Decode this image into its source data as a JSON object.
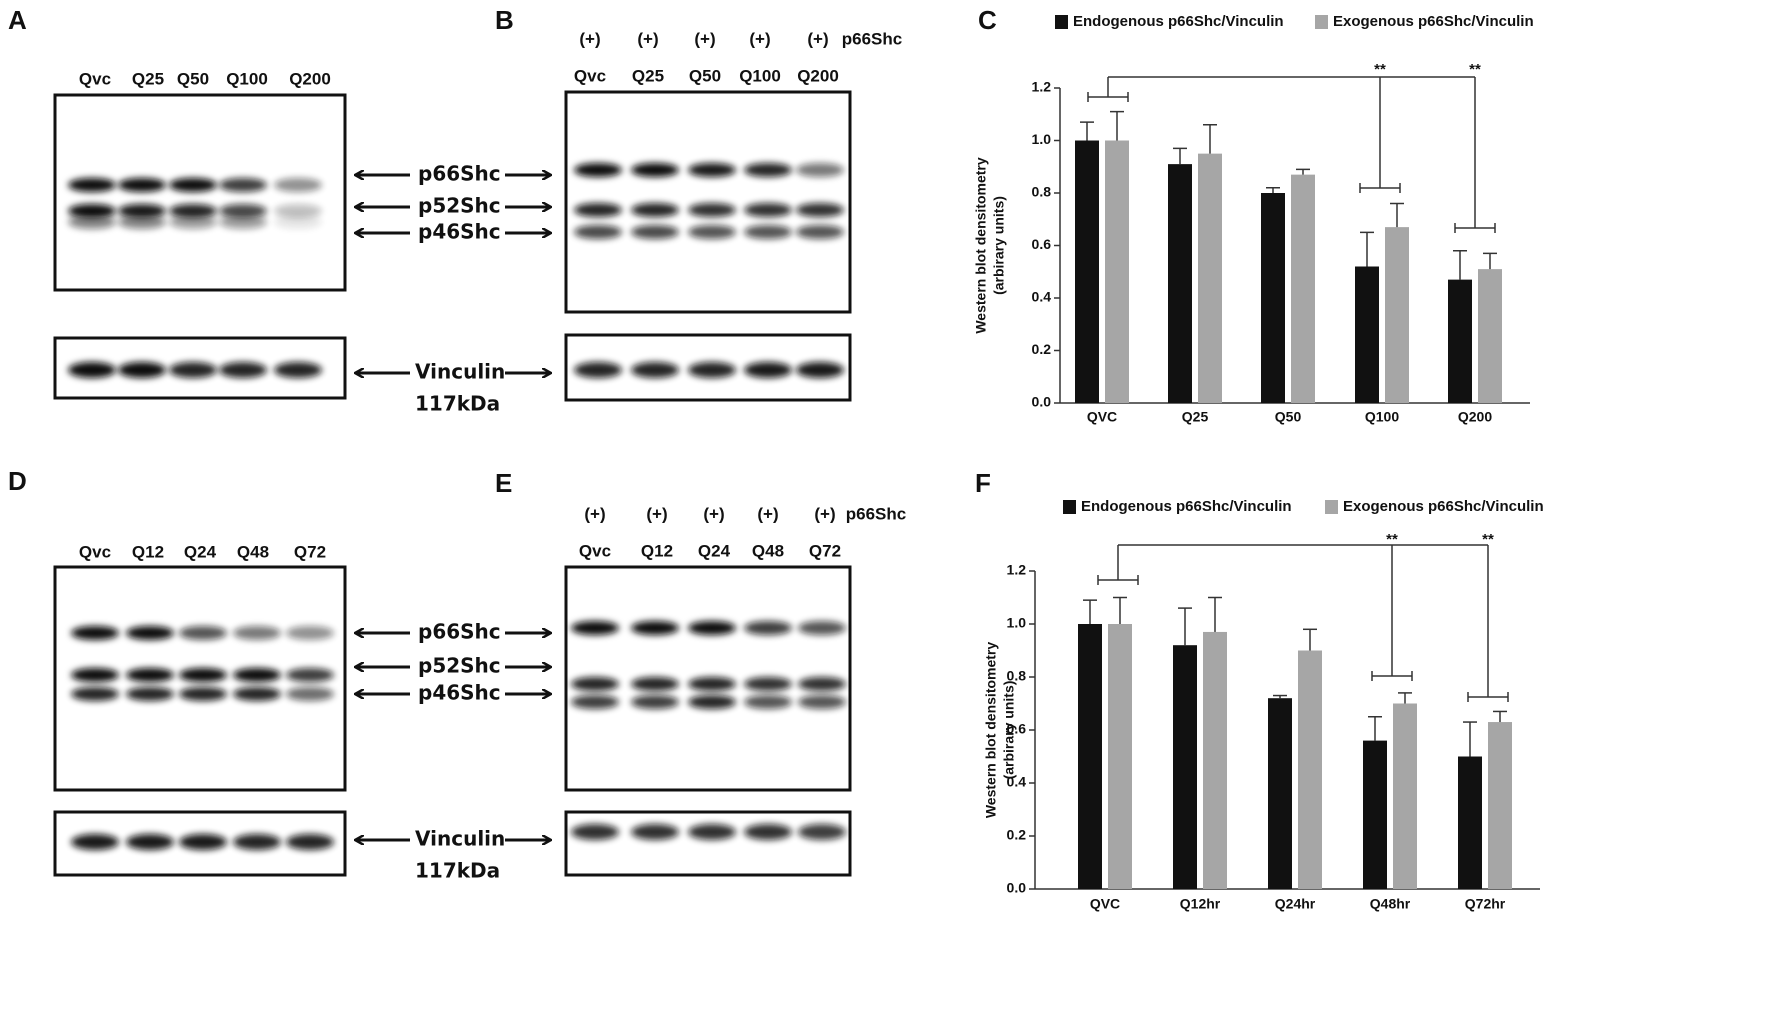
{
  "panels": {
    "A": {
      "letter": "A",
      "lanes": [
        "Qvc",
        "Q25",
        "Q50",
        "Q100",
        "Q200"
      ]
    },
    "B": {
      "letter": "B",
      "plus": [
        "(+)",
        "(+)",
        "(+)",
        "(+)",
        "(+)"
      ],
      "construct": "p66Shc",
      "lanes": [
        "Qvc",
        "Q25",
        "Q50",
        "Q100",
        "Q200"
      ]
    },
    "D": {
      "letter": "D",
      "lanes": [
        "Qvc",
        "Q12",
        "Q24",
        "Q48",
        "Q72"
      ]
    },
    "E": {
      "letter": "E",
      "plus": [
        "(+)",
        "(+)",
        "(+)",
        "(+)",
        "(+)"
      ],
      "construct": "p66Shc",
      "lanes": [
        "Qvc",
        "Q12",
        "Q24",
        "Q48",
        "Q72"
      ]
    },
    "markers_top": {
      "bands": [
        "p66Shc",
        "p52Shc",
        "p46Shc"
      ],
      "loading": "Vinculin",
      "size": "117kDa"
    },
    "markers_bottom": {
      "bands": [
        "p66Shc",
        "p52Shc",
        "p46Shc"
      ],
      "loading": "Vinculin",
      "size": "117kDa"
    }
  },
  "chart_data": [
    {
      "type": "bar",
      "panel_label": "C",
      "y_label": [
        "Western blot densitometry",
        "(arbirary units)"
      ],
      "categories": [
        "QVC",
        "Q25",
        "Q50",
        "Q100",
        "Q200"
      ],
      "series": [
        {
          "name": "Endogenous p66Shc/Vinculin",
          "color": "#111111",
          "values": [
            1.0,
            0.91,
            0.8,
            0.52,
            0.47
          ],
          "errors": [
            0.07,
            0.06,
            0.02,
            0.13,
            0.11
          ]
        },
        {
          "name": "Exogenous p66Shc/Vinculin",
          "color": "#a6a6a6",
          "values": [
            1.0,
            0.95,
            0.87,
            0.67,
            0.51
          ],
          "errors": [
            0.11,
            0.11,
            0.02,
            0.09,
            0.06
          ]
        }
      ],
      "ylim": [
        0,
        1.2
      ],
      "yticks": [
        {
          "value": 0,
          "label": "0.0"
        },
        0.2,
        0.4,
        0.6,
        0.8,
        {
          "value": 1,
          "label": "1.0"
        },
        1.2
      ],
      "annotations": [
        "**",
        "**"
      ]
    },
    {
      "type": "bar",
      "panel_label": "F",
      "y_label": [
        "Western blot densitometry",
        "(arbirary units)"
      ],
      "categories": [
        "QVC",
        "Q12hr",
        "Q24hr",
        "Q48hr",
        "Q72hr"
      ],
      "series": [
        {
          "name": "Endogenous p66Shc/Vinculin",
          "color": "#111111",
          "values": [
            1.0,
            0.92,
            0.72,
            0.56,
            0.5
          ],
          "errors": [
            0.09,
            0.14,
            0.01,
            0.09,
            0.13
          ]
        },
        {
          "name": "Exogenous p66Shc/Vinculin",
          "color": "#a6a6a6",
          "values": [
            1.0,
            0.97,
            0.9,
            0.7,
            0.63
          ],
          "errors": [
            0.1,
            0.13,
            0.08,
            0.04,
            0.04
          ]
        }
      ],
      "ylim": [
        0,
        1.2
      ],
      "yticks": [
        {
          "value": 0,
          "label": "0.0"
        },
        0.2,
        0.4,
        0.6,
        0.8,
        {
          "value": 1,
          "label": "1.0"
        },
        1.2
      ],
      "annotations": [
        "**",
        "**"
      ]
    }
  ]
}
